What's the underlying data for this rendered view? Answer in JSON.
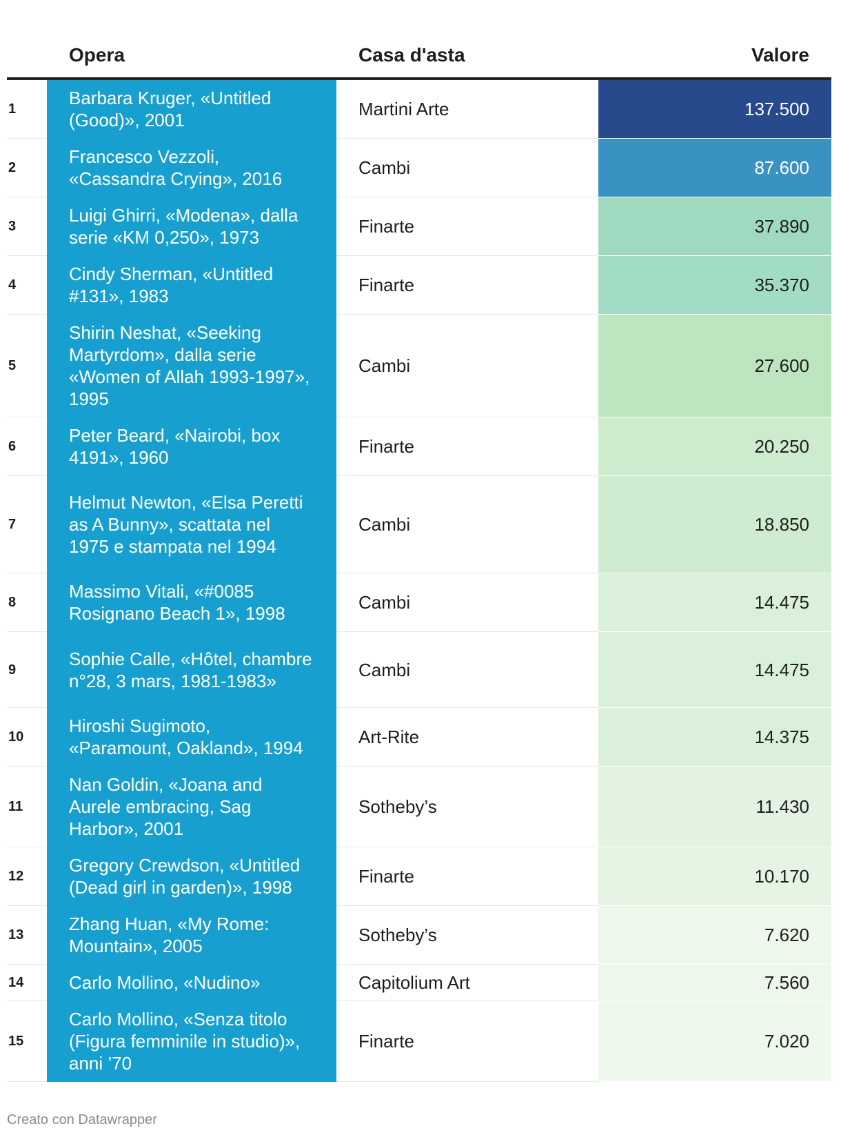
{
  "header": {
    "rank": "",
    "opera": "Opera",
    "casa": "Casa d'asta",
    "valore": "Valore"
  },
  "footer": "Creato con Datawrapper",
  "chart_data": {
    "type": "table",
    "columns": [
      "",
      "Opera",
      "Casa d'asta",
      "Valore"
    ],
    "rows": [
      {
        "rank": "1",
        "opera": "Barbara Kruger, «Untitled (Good)», 2001",
        "casa": "Martini Arte",
        "valore": "137.500",
        "value": 137500,
        "color": "#264a8c",
        "text_color": "#ffffff"
      },
      {
        "rank": "2",
        "opera": "Francesco Vezzoli, «Cassandra Crying», 2016",
        "casa": "Cambi",
        "valore": "87.600",
        "value": 87600,
        "color": "#3a92c2",
        "text_color": "#ffffff"
      },
      {
        "rank": "3",
        "opera": "Luigi Ghirri, «Modena», dalla serie «KM 0,250», 1973",
        "casa": "Finarte",
        "valore": "37.890",
        "value": 37890,
        "color": "#9ed9c0",
        "text_color": "#1d1d1d"
      },
      {
        "rank": "4",
        "opera": "Cindy Sherman, «Untitled #131», 1983",
        "casa": "Finarte",
        "valore": "35.370",
        "value": 35370,
        "color": "#a3dcc4",
        "text_color": "#1d1d1d"
      },
      {
        "rank": "5",
        "opera": "Shirin Neshat, «Seeking Martyrdom», dalla serie «Women of Allah 1993-1997», 1995",
        "casa": "Cambi",
        "valore": "27.600",
        "value": 27600,
        "color": "#bde6c0",
        "text_color": "#1d1d1d"
      },
      {
        "rank": "6",
        "opera": "Peter Beard, «Nairobi, box 4191», 1960",
        "casa": "Finarte",
        "valore": "20.250",
        "value": 20250,
        "color": "#cdebcd",
        "text_color": "#1d1d1d"
      },
      {
        "rank": "7",
        "opera": "Helmut Newton, «Elsa Peretti as A Bunny», scattata nel 1975 e stampata nel 1994",
        "casa": "Cambi",
        "valore": "18.850",
        "value": 18850,
        "color": "#d0ecd0",
        "text_color": "#1d1d1d"
      },
      {
        "rank": "8",
        "opera": "Massimo Vitali, «#0085 Rosignano Beach 1», 1998",
        "casa": "Cambi",
        "valore": "14.475",
        "value": 14475,
        "color": "#daf0da",
        "text_color": "#1d1d1d"
      },
      {
        "rank": "9",
        "opera": "Sophie Calle, «Hôtel, chambre n°28, 3 mars, 1981-1983»",
        "casa": "Cambi",
        "valore": "14.475",
        "value": 14475,
        "color": "#daf0da",
        "text_color": "#1d1d1d"
      },
      {
        "rank": "10",
        "opera": "Hiroshi Sugimoto, «Paramount, Oakland», 1994",
        "casa": "Art-Rite",
        "valore": "14.375",
        "value": 14375,
        "color": "#dbf0db",
        "text_color": "#1d1d1d"
      },
      {
        "rank": "11",
        "opera": "Nan Goldin, «Joana and Aurele embracing, Sag Harbor», 2001",
        "casa": "Sotheby’s",
        "valore": "11.430",
        "value": 11430,
        "color": "#e2f3e1",
        "text_color": "#1d1d1d"
      },
      {
        "rank": "12",
        "opera": "Gregory Crewdson, «Untitled (Dead girl in garden)», 1998",
        "casa": "Finarte",
        "valore": "10.170",
        "value": 10170,
        "color": "#e5f4e3",
        "text_color": "#1d1d1d"
      },
      {
        "rank": "13",
        "opera": "Zhang Huan, «My Rome: Mountain», 2005",
        "casa": "Sotheby’s",
        "valore": "7.620",
        "value": 7620,
        "color": "#edf7ea",
        "text_color": "#1d1d1d"
      },
      {
        "rank": "14",
        "opera": "Carlo Mollino, «Nudino»",
        "casa": "Capitolium Art",
        "valore": "7.560",
        "value": 7560,
        "color": "#edf7ea",
        "text_color": "#1d1d1d"
      },
      {
        "rank": "15",
        "opera": "Carlo Mollino, «Senza titolo (Figura femminile in studio)», anni ’70",
        "casa": "Finarte",
        "valore": "7.020",
        "value": 7020,
        "color": "#eff8ec",
        "text_color": "#1d1d1d"
      }
    ]
  }
}
